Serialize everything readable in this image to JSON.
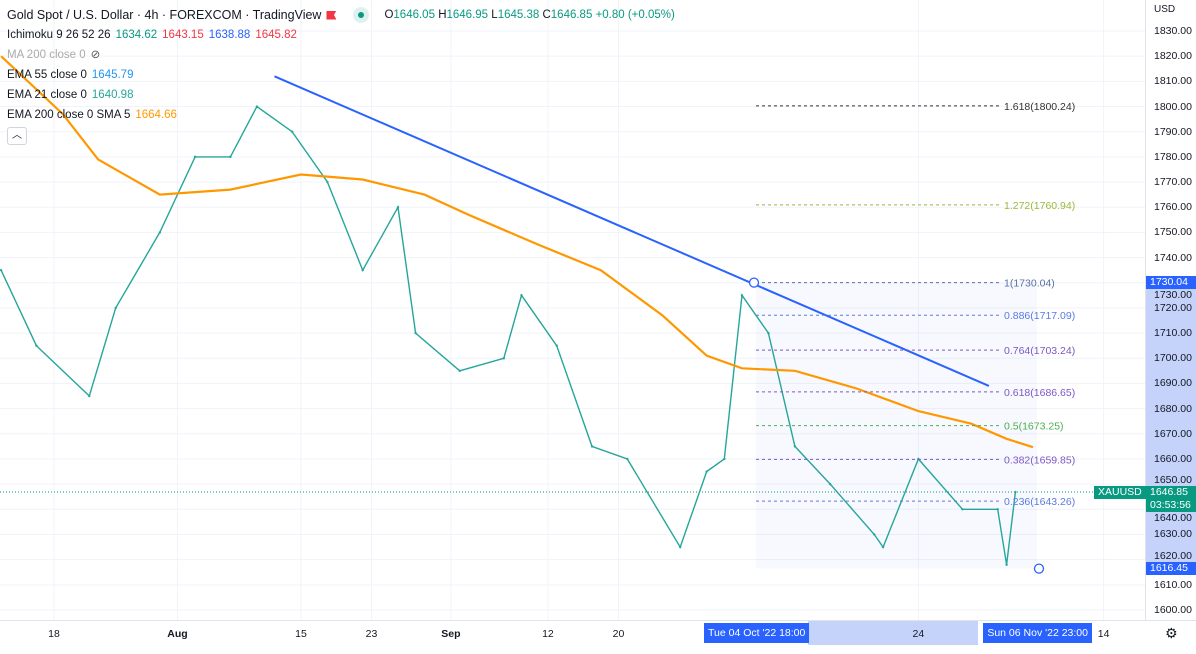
{
  "header": {
    "title": "Gold Spot / U.S. Dollar · 4h · FOREXCOM · TradingView",
    "ohlc": {
      "o_label": "O",
      "o": "1646.05",
      "h_label": "H",
      "h": "1646.95",
      "l_label": "L",
      "l": "1645.38",
      "c_label": "C",
      "c": "1646.85",
      "change": "+0.80 (+0.05%)"
    }
  },
  "indicators": [
    {
      "name": "Ichimoku 9 26 52 26",
      "values": [
        "1634.62",
        "1643.15",
        "1638.88",
        "1645.82"
      ],
      "colors": [
        "#089981",
        "#f23645",
        "#2962ff",
        "#f23645"
      ]
    },
    {
      "name": "MA 200 close 0",
      "values": [],
      "hidden": true
    },
    {
      "name": "EMA 55 close 0",
      "values": [
        "1645.79"
      ],
      "colors": [
        "#2196f3"
      ]
    },
    {
      "name": "EMA 21 close 0",
      "values": [
        "1640.98"
      ],
      "colors": [
        "#26a69a"
      ]
    },
    {
      "name": "EMA 200 close 0 SMA 5",
      "values": [
        "1664.66"
      ],
      "colors": [
        "#ff9800"
      ]
    }
  ],
  "symbol_badge": {
    "symbol": "XAUUSD",
    "price": "1646.85",
    "countdown": "03:53:56",
    "color": "#089981"
  },
  "range_badges": {
    "high": "1730.04",
    "low": "1616.45",
    "start_time": "Tue 04 Oct '22   18:00",
    "end_time": "Sun 06 Nov '22   23:00",
    "color": "#2962ff"
  },
  "currency": "USD",
  "chart_data": {
    "type": "line",
    "title": "Gold Spot / U.S. Dollar · 4h · FOREXCOM",
    "ylim": [
      1595,
      1835
    ],
    "y_ticks": [
      "1830.00",
      "1820.00",
      "1810.00",
      "1800.00",
      "1790.00",
      "1780.00",
      "1770.00",
      "1760.00",
      "1750.00",
      "1740.00",
      "1730.00",
      "1720.00",
      "1710.00",
      "1700.00",
      "1690.00",
      "1680.00",
      "1670.00",
      "1660.00",
      "1650.00",
      "1640.00",
      "1630.00",
      "1620.00",
      "1610.00",
      "1600.00"
    ],
    "x_ticks": [
      {
        "label": "18",
        "date": "2022-07-18"
      },
      {
        "label": "Aug",
        "date": "2022-08-01"
      },
      {
        "label": "15",
        "date": "2022-08-15"
      },
      {
        "label": "23",
        "date": "2022-08-23"
      },
      {
        "label": "Sep",
        "date": "2022-09-01"
      },
      {
        "label": "12",
        "date": "2022-09-12"
      },
      {
        "label": "20",
        "date": "2022-09-20"
      },
      {
        "label": "24",
        "date": "2022-10-24"
      },
      {
        "label": "14",
        "date": "2022-11-14"
      }
    ],
    "grid": true,
    "series": [
      {
        "key": "price",
        "color": "#26a69a",
        "points": [
          [
            "2022-07-12",
            1735
          ],
          [
            "2022-07-16",
            1705
          ],
          [
            "2022-07-22",
            1685
          ],
          [
            "2022-07-25",
            1720
          ],
          [
            "2022-07-30",
            1750
          ],
          [
            "2022-08-03",
            1780
          ],
          [
            "2022-08-07",
            1780
          ],
          [
            "2022-08-10",
            1800
          ],
          [
            "2022-08-14",
            1790
          ],
          [
            "2022-08-18",
            1770
          ],
          [
            "2022-08-22",
            1735
          ],
          [
            "2022-08-26",
            1760
          ],
          [
            "2022-08-28",
            1710
          ],
          [
            "2022-09-02",
            1695
          ],
          [
            "2022-09-07",
            1700
          ],
          [
            "2022-09-09",
            1725
          ],
          [
            "2022-09-13",
            1705
          ],
          [
            "2022-09-17",
            1665
          ],
          [
            "2022-09-21",
            1660
          ],
          [
            "2022-09-27",
            1625
          ],
          [
            "2022-09-30",
            1655
          ],
          [
            "2022-10-02",
            1660
          ],
          [
            "2022-10-04",
            1725
          ],
          [
            "2022-10-07",
            1710
          ],
          [
            "2022-10-10",
            1665
          ],
          [
            "2022-10-14",
            1650
          ],
          [
            "2022-10-19",
            1630
          ],
          [
            "2022-10-20",
            1625
          ],
          [
            "2022-10-24",
            1660
          ],
          [
            "2022-10-29",
            1640
          ],
          [
            "2022-11-02",
            1640
          ],
          [
            "2022-11-03",
            1618
          ],
          [
            "2022-11-04",
            1646.85
          ]
        ]
      },
      {
        "key": "ema200",
        "name": "EMA 200 close 0 SMA 5",
        "color": "#ff9800",
        "points": [
          [
            "2022-07-12",
            1820
          ],
          [
            "2022-07-19",
            1797
          ],
          [
            "2022-07-23",
            1779
          ],
          [
            "2022-07-30",
            1765
          ],
          [
            "2022-08-07",
            1767
          ],
          [
            "2022-08-15",
            1773
          ],
          [
            "2022-08-22",
            1771
          ],
          [
            "2022-08-29",
            1765
          ],
          [
            "2022-09-03",
            1757
          ],
          [
            "2022-09-11",
            1745
          ],
          [
            "2022-09-18",
            1735
          ],
          [
            "2022-09-25",
            1717
          ],
          [
            "2022-09-30",
            1701
          ],
          [
            "2022-10-04",
            1696
          ],
          [
            "2022-10-10",
            1695
          ],
          [
            "2022-10-17",
            1688
          ],
          [
            "2022-10-24",
            1679
          ],
          [
            "2022-10-30",
            1674
          ],
          [
            "2022-11-03",
            1668
          ],
          [
            "2022-11-06",
            1664.66
          ]
        ]
      }
    ],
    "trendline": {
      "color": "#2962ff",
      "from": [
        "2022-08-12",
        1812
      ],
      "to": [
        "2022-11-01",
        1689
      ]
    },
    "fib_levels": [
      {
        "label": "1.618(1800.24)",
        "price": 1800.24,
        "color": "#333333"
      },
      {
        "label": "1.272(1760.94)",
        "price": 1760.94,
        "color": "#9bb83a"
      },
      {
        "label": "1(1730.04)",
        "price": 1730.04,
        "color": "#5b6fa8"
      },
      {
        "label": "0.886(1717.09)",
        "price": 1717.09,
        "color": "#5b7be0"
      },
      {
        "label": "0.764(1703.24)",
        "price": 1703.24,
        "color": "#7e57c2"
      },
      {
        "label": "0.618(1686.65)",
        "price": 1686.65,
        "color": "#7e57c2"
      },
      {
        "label": "0.5(1673.25)",
        "price": 1673.25,
        "color": "#4caf50"
      },
      {
        "label": "0.382(1659.85)",
        "price": 1659.85,
        "color": "#7e57c2"
      },
      {
        "label": "0.236(1643.26)",
        "price": 1643.26,
        "color": "#5b7be0"
      }
    ]
  }
}
